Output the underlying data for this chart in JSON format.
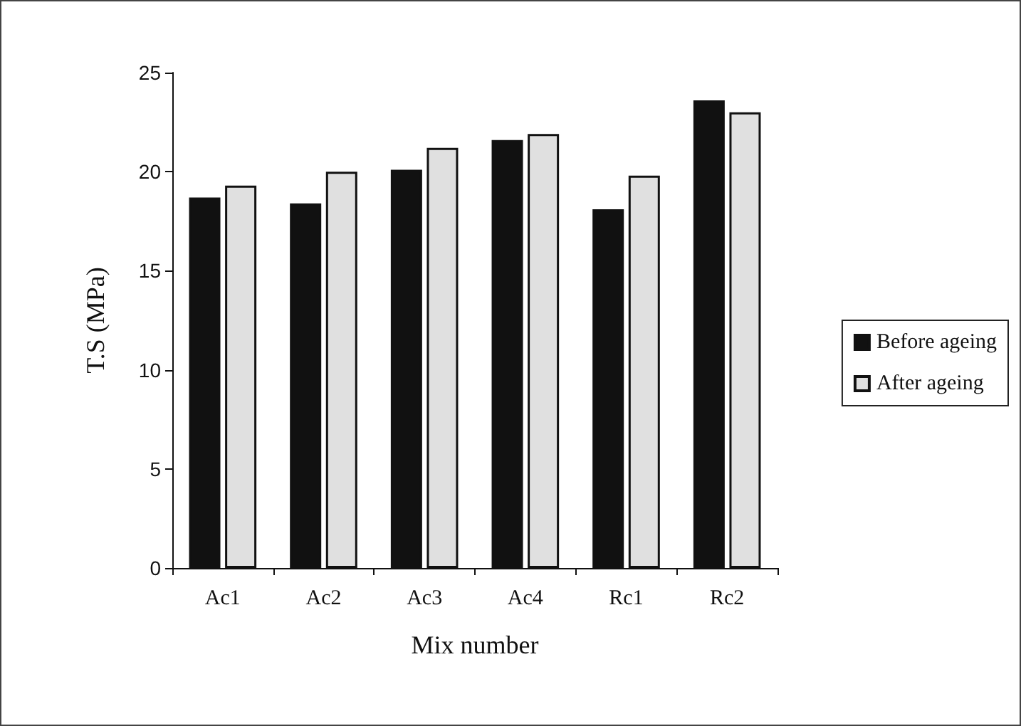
{
  "chart_data": {
    "type": "bar",
    "xlabel": "Mix number",
    "ylabel": "T.S (MPa)",
    "categories": [
      "Ac1",
      "Ac2",
      "Ac3",
      "Ac4",
      "Rc1",
      "Rc2"
    ],
    "series": [
      {
        "name": "Before ageing",
        "color": "#111111",
        "values": [
          18.7,
          18.4,
          20.1,
          21.6,
          18.1,
          23.6
        ]
      },
      {
        "name": "After ageing",
        "color": "#e0e0e0",
        "values": [
          19.3,
          20.0,
          21.2,
          21.9,
          19.8,
          23.0
        ]
      }
    ],
    "ylim": [
      0,
      25
    ],
    "yticks": [
      0,
      5,
      10,
      15,
      20,
      25
    ],
    "grid": false,
    "legend": "right"
  }
}
